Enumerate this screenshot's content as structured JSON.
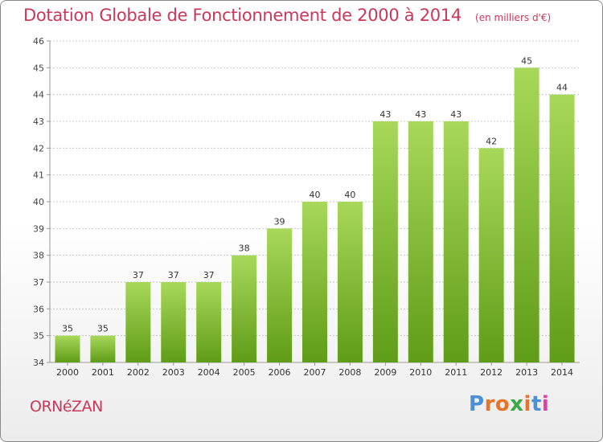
{
  "header": {
    "title": "Dotation Globale de Fonctionnement de 2000 à 2014",
    "unit": "(en milliers d'€)"
  },
  "footer": {
    "commune": "ORNéZAN",
    "brand_letters": [
      "P",
      "r",
      "o",
      "x",
      "i",
      "t",
      "i"
    ],
    "brand_colors": [
      "#4a90d9",
      "#e8742a",
      "#e8742a",
      "#3aa845",
      "#e8742a",
      "#4a90d9",
      "#d14a9b"
    ]
  },
  "colors": {
    "bar_light": "#a8d85a",
    "bar_dark": "#5f9c17",
    "title": "#c8385a",
    "grid": "#c8c8c8"
  },
  "chart_data": {
    "type": "bar",
    "categories": [
      "2000",
      "2001",
      "2002",
      "2003",
      "2004",
      "2005",
      "2006",
      "2007",
      "2008",
      "2009",
      "2010",
      "2011",
      "2012",
      "2013",
      "2014"
    ],
    "values": [
      35,
      35,
      37,
      37,
      37,
      38,
      39,
      40,
      40,
      43,
      43,
      43,
      42,
      45,
      44
    ],
    "data_labels": [
      "35",
      "35",
      "37",
      "37",
      "37",
      "38",
      "39",
      "40",
      "40",
      "43",
      "43",
      "43",
      "42",
      "45",
      "44"
    ],
    "yticks": [
      "34",
      "35",
      "36",
      "37",
      "38",
      "39",
      "40",
      "41",
      "42",
      "43",
      "44",
      "45",
      "46"
    ],
    "ylim": [
      34,
      46
    ],
    "grid": true,
    "xlabel": "",
    "ylabel": ""
  }
}
